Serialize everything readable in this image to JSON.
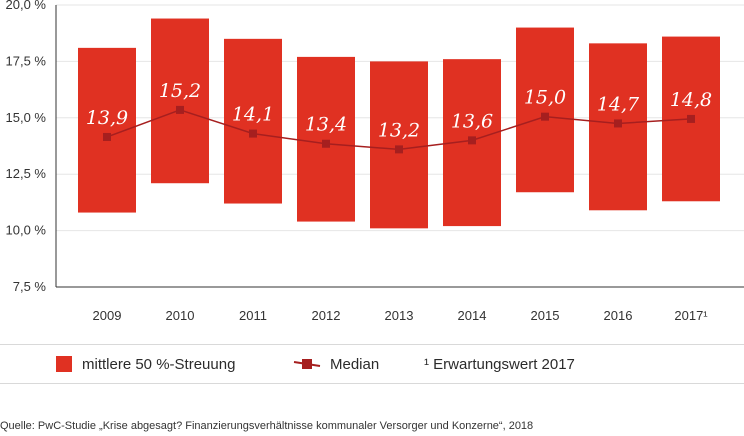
{
  "colors": {
    "band": "#e03122",
    "median": "#a61f1f",
    "axis": "#333333",
    "grid": "#e6e6e6"
  },
  "chart_data": {
    "type": "bar",
    "categories": [
      "2009",
      "2010",
      "2011",
      "2012",
      "2013",
      "2014",
      "2015",
      "2016",
      "2017¹"
    ],
    "ylim": [
      7.5,
      20.0
    ],
    "yticks": [
      {
        "value": 7.5,
        "label": "7,5 %"
      },
      {
        "value": 10.0,
        "label": "10,0 %"
      },
      {
        "value": 12.5,
        "label": "12,5 %"
      },
      {
        "value": 15.0,
        "label": "15,0 %"
      },
      {
        "value": 17.5,
        "label": "17,5 %"
      },
      {
        "value": 20.0,
        "label": "20,0 %"
      }
    ],
    "series": [
      {
        "name": "mittlere 50 %-Streuung",
        "type": "floating-bar",
        "low": [
          10.8,
          12.1,
          11.2,
          10.4,
          10.1,
          10.2,
          11.7,
          10.9,
          11.3
        ],
        "high": [
          18.1,
          19.4,
          18.5,
          17.7,
          17.5,
          17.6,
          19.0,
          18.3,
          18.6
        ]
      },
      {
        "name": "Median",
        "type": "line",
        "values": [
          13.9,
          15.2,
          14.1,
          13.4,
          13.2,
          13.6,
          15.0,
          14.7,
          14.8
        ],
        "labels": [
          "13,9",
          "15,2",
          "14,1",
          "13,4",
          "13,2",
          "13,6",
          "15,0",
          "14,7",
          "14,8"
        ],
        "marker_values": [
          14.15,
          15.35,
          14.3,
          13.85,
          13.6,
          14.0,
          15.05,
          14.75,
          14.95
        ]
      }
    ]
  },
  "legend": {
    "band_label": "mittlere 50 %-Streuung",
    "median_label": "Median",
    "note": "¹ Erwartungswert 2017"
  },
  "source": "Quelle: PwC-Studie „Krise abgesagt? Finanzierungsverhältnisse kommunaler Versorger und Konzerne“, 2018"
}
